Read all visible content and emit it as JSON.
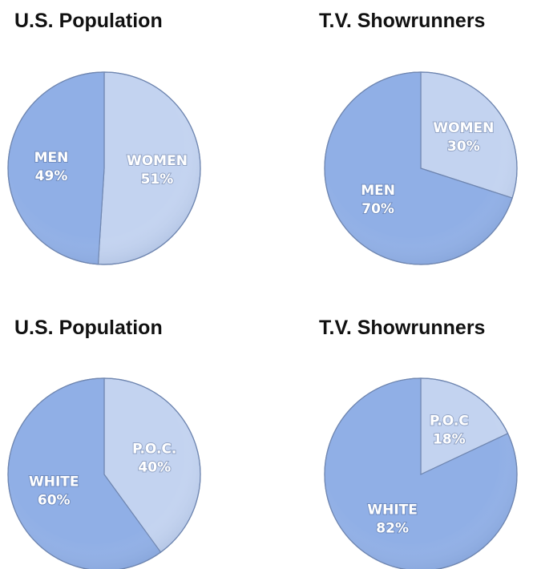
{
  "chart_data": [
    {
      "type": "pie",
      "title": "U.S. Population",
      "categories": [
        "WOMEN",
        "MEN"
      ],
      "values": [
        51,
        49
      ],
      "value_labels": [
        "51%",
        "49%"
      ],
      "colors": [
        "#c3d3f0",
        "#90afe6"
      ]
    },
    {
      "type": "pie",
      "title": "T.V. Showrunners",
      "categories": [
        "WOMEN",
        "MEN"
      ],
      "values": [
        30,
        70
      ],
      "value_labels": [
        "30%",
        "70%"
      ],
      "colors": [
        "#c3d3f0",
        "#90afe6"
      ]
    },
    {
      "type": "pie",
      "title": "U.S. Population",
      "categories": [
        "P.O.C.",
        "WHITE"
      ],
      "values": [
        40,
        60
      ],
      "value_labels": [
        "40%",
        "60%"
      ],
      "colors": [
        "#c3d3f0",
        "#90afe6"
      ]
    },
    {
      "type": "pie",
      "title": "T.V. Showrunners",
      "categories": [
        "P.O.C",
        "WHITE"
      ],
      "values": [
        18,
        82
      ],
      "value_labels": [
        "18%",
        "82%"
      ],
      "colors": [
        "#c3d3f0",
        "#90afe6"
      ]
    }
  ]
}
